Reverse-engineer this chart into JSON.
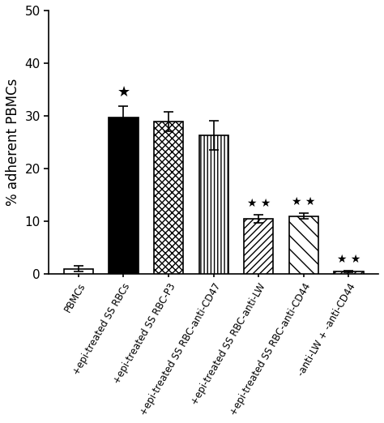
{
  "categories": [
    "PBMCs",
    "+epi-treated SS RBCs",
    "+epi-treated SS RBC-P3",
    "+epi-treated SS RBC-anti-CD47",
    "+epi-treated SS RBC-anti-LW",
    "+epi-treated SS RBC-anti-CD44",
    "-anti-LW + -anti-CD44"
  ],
  "values": [
    1.0,
    29.7,
    28.9,
    26.3,
    10.5,
    11.0,
    0.5
  ],
  "errors": [
    0.5,
    2.2,
    1.8,
    2.8,
    0.8,
    0.6,
    0.2
  ],
  "face_colors": [
    "white",
    "black",
    "white",
    "white",
    "white",
    "white",
    "white"
  ],
  "significance": [
    null,
    "*",
    null,
    null,
    "**",
    "**",
    "**"
  ],
  "ylabel": "% adherent PBMCs",
  "ylim": [
    0,
    50
  ],
  "yticks": [
    0,
    10,
    20,
    30,
    40,
    50
  ],
  "bar_width": 0.65,
  "background_color": "#ffffff",
  "tick_fontsize": 11,
  "label_fontsize": 12
}
